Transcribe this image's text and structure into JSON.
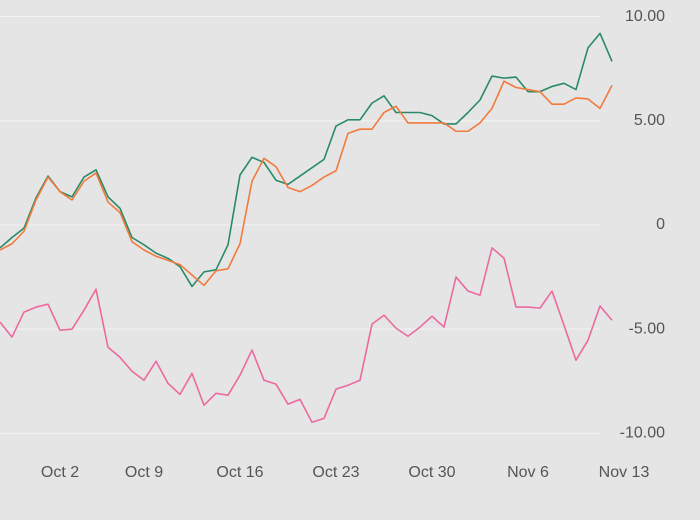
{
  "chart_data": {
    "type": "line",
    "categories": [
      null,
      null,
      null,
      null,
      null,
      "Oct 2",
      null,
      null,
      null,
      null,
      null,
      null,
      "Oct 9",
      null,
      null,
      null,
      null,
      null,
      null,
      null,
      "Oct 16",
      null,
      null,
      null,
      null,
      null,
      null,
      null,
      "Oct 23",
      null,
      null,
      null,
      null,
      null,
      null,
      null,
      "Oct 30",
      null,
      null,
      null,
      null,
      null,
      null,
      null,
      "Nov 6",
      null,
      null,
      null,
      null,
      null,
      null,
      null,
      "Nov 13"
    ],
    "series": [
      {
        "color": "#2a8a66",
        "values": [
          -1.1,
          -0.6,
          -0.15,
          1.3,
          2.35,
          1.6,
          1.35,
          2.3,
          2.65,
          1.35,
          0.8,
          -0.6,
          -0.95,
          -1.35,
          -1.6,
          -2.0,
          -2.95,
          -2.25,
          -2.15,
          -0.95,
          2.4,
          3.25,
          3.0,
          2.15,
          1.95,
          2.35,
          2.75,
          3.15,
          4.75,
          5.05,
          5.05,
          5.85,
          6.2,
          5.4,
          5.4,
          5.4,
          5.25,
          4.85,
          4.85,
          5.4,
          6.0,
          7.15,
          7.05,
          7.1,
          6.4,
          6.4,
          6.65,
          6.8,
          6.5,
          8.5,
          9.2,
          7.85,
          null
        ]
      },
      {
        "color": "#f27a3e",
        "values": [
          -1.2,
          -0.9,
          -0.3,
          1.2,
          2.3,
          1.6,
          1.2,
          2.1,
          2.5,
          1.1,
          0.6,
          -0.8,
          -1.2,
          -1.5,
          -1.7,
          -1.9,
          -2.4,
          -2.9,
          -2.2,
          -2.1,
          -0.9,
          2.1,
          3.2,
          2.8,
          1.8,
          1.6,
          1.9,
          2.3,
          2.6,
          4.4,
          4.6,
          4.6,
          5.4,
          5.7,
          4.9,
          4.9,
          4.9,
          4.9,
          4.5,
          4.5,
          4.9,
          5.6,
          6.9,
          6.6,
          6.5,
          6.4,
          5.8,
          5.8,
          6.1,
          6.05,
          5.6,
          6.7,
          null
        ]
      },
      {
        "color": "#ec6aa0",
        "values": [
          -4.66,
          -5.38,
          -4.18,
          -3.94,
          -3.8,
          -5.05,
          -5.0,
          -4.09,
          -3.08,
          -5.87,
          -6.35,
          -7.02,
          -7.45,
          -6.54,
          -7.6,
          -8.13,
          -7.12,
          -8.65,
          -8.08,
          -8.17,
          -7.21,
          -6.0,
          -7.45,
          -7.64,
          -8.6,
          -8.37,
          -9.47,
          -9.28,
          -7.88,
          -7.69,
          -7.45,
          -4.76,
          -4.33,
          -4.95,
          -5.34,
          -4.9,
          -4.38,
          -4.9,
          -2.5,
          -3.17,
          -3.37,
          -1.1,
          -1.59,
          -3.94,
          -3.94,
          -3.99,
          -3.17,
          -4.81,
          -6.49,
          -5.53,
          -3.89,
          -4.57,
          null
        ]
      }
    ],
    "ylim": [
      -10.8,
      10.8
    ],
    "yticks": [
      {
        "value": -10,
        "label": "-10.00"
      },
      {
        "value": -5,
        "label": "-5.00"
      },
      0,
      {
        "value": 5,
        "label": "5.00"
      },
      {
        "value": 10,
        "label": "10.00"
      }
    ],
    "grid": true
  }
}
